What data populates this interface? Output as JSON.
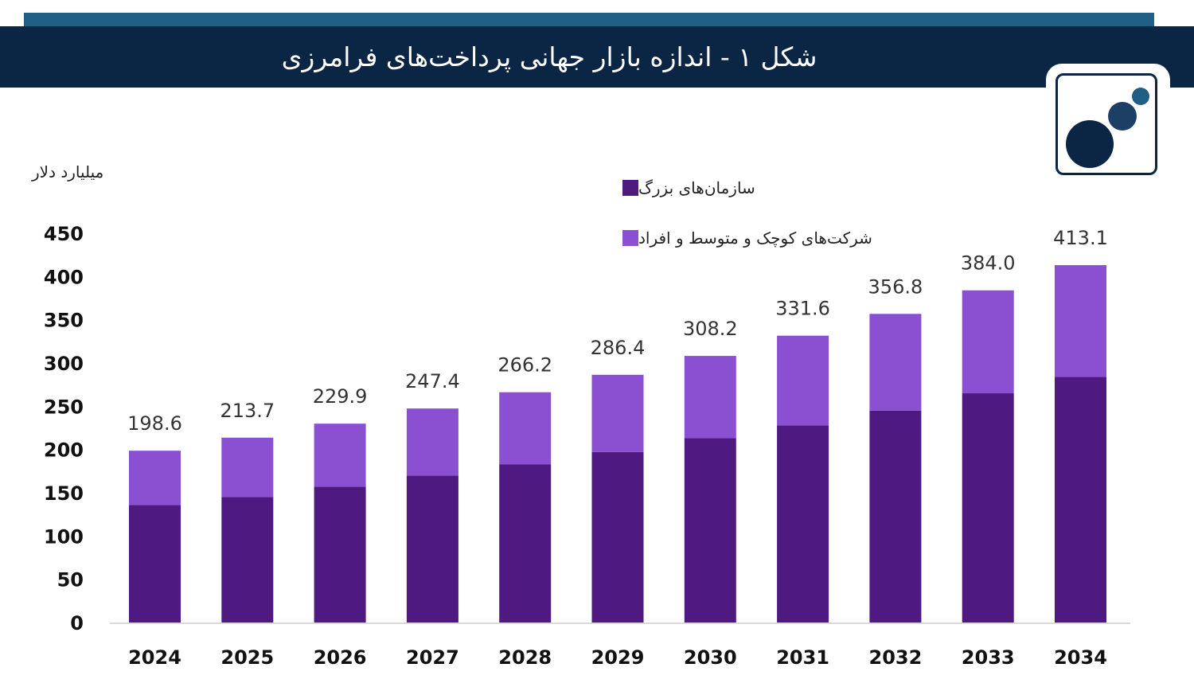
{
  "header": {
    "title": "شکل ۱ - اندازه بازار جهانی پرداخت‌های فرامرزی"
  },
  "logo": {
    "icon": "dots-logo-icon"
  },
  "colors": {
    "strip": "#1f5f86",
    "title_bar": "#0b2545",
    "large": "#4e1a82",
    "sme": "#8b4fd1"
  },
  "chart_data": {
    "type": "bar",
    "stacked": true,
    "unit_label": "میلیارد دلار",
    "categories": [
      "2024",
      "2025",
      "2026",
      "2027",
      "2028",
      "2029",
      "2030",
      "2031",
      "2032",
      "2033",
      "2034"
    ],
    "series": [
      {
        "name": "سازمان‌های بزرگ",
        "color": "#4e1a82",
        "values": [
          136,
          145,
          157,
          170,
          183,
          197,
          213,
          228,
          245,
          265,
          284
        ]
      },
      {
        "name": "شرکت‌های کوچک و متوسط و افراد",
        "color": "#8b4fd1",
        "values": [
          62.6,
          68.7,
          72.9,
          77.4,
          83.2,
          89.4,
          95.2,
          103.6,
          111.8,
          119.0,
          129.1
        ]
      }
    ],
    "totals": [
      "198.6",
      "213.7",
      "229.9",
      "247.4",
      "266.2",
      "286.4",
      "308.2",
      "331.6",
      "356.8",
      "384.0",
      "413.1"
    ],
    "yticks": [
      0,
      50,
      100,
      150,
      200,
      250,
      300,
      350,
      400,
      450
    ],
    "ylim": [
      0,
      450
    ],
    "grid": false,
    "legend_position": "top-right"
  }
}
